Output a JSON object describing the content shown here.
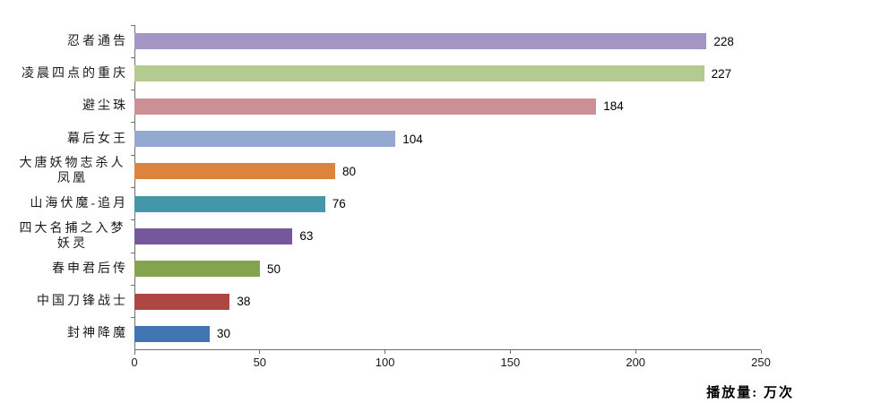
{
  "chart_data": {
    "type": "bar",
    "orientation": "horizontal",
    "categories": [
      "忍者通告",
      "凌晨四点的重庆",
      "避尘珠",
      "幕后女王",
      "大唐妖物志杀人凤凰",
      "山海伏魔-追月",
      "四大名捕之入梦妖灵",
      "春申君后传",
      "中国刀锋战士",
      "封神降魔"
    ],
    "values": [
      228,
      227,
      184,
      104,
      80,
      76,
      63,
      50,
      38,
      30
    ],
    "bar_colors": [
      "#A495C2",
      "#B3CB8F",
      "#CB9094",
      "#93A9D2",
      "#DC833E",
      "#4496A9",
      "#74589B",
      "#84A34D",
      "#AE4646",
      "#4274B2"
    ],
    "xlim": [
      0,
      250
    ],
    "xticks": [
      0,
      50,
      100,
      150,
      200,
      250
    ],
    "value_labels_shown": true,
    "grid": false,
    "legend": false,
    "axis_color": "#707070",
    "axis_note": "播放量: 万次"
  }
}
